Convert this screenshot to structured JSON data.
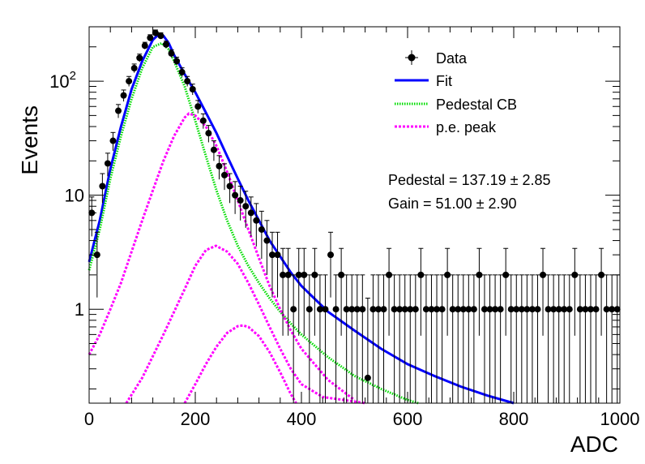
{
  "chart_data": {
    "type": "scatter",
    "title": "",
    "xlabel": "ADC",
    "ylabel": "Events",
    "xlim": [
      0,
      1000
    ],
    "ylim": [
      0.15,
      300
    ],
    "yscale": "log",
    "grid": false,
    "legend_position": "top-right",
    "x_ticks": [
      "0",
      "200",
      "400",
      "600",
      "800",
      "1000"
    ],
    "y_ticks": [
      {
        "value": 1,
        "base": "1",
        "exp": ""
      },
      {
        "value": 10,
        "base": "10",
        "exp": ""
      },
      {
        "value": 100,
        "base": "10",
        "exp": "2"
      }
    ],
    "legend": [
      {
        "label": "Data",
        "style": "marker",
        "color": "#000000"
      },
      {
        "label": "Fit",
        "style": "solid",
        "color": "#0000ff"
      },
      {
        "label": "Pedestal CB",
        "style": "dotted",
        "color": "#00dd00"
      },
      {
        "label": "p.e. peak",
        "style": "dotted",
        "color": "#ff00ff"
      }
    ],
    "annotations": [
      "Pedestal = 137.19 ± 2.85",
      "Gain = 51.00 ± 2.90"
    ],
    "data": {
      "x": [
        5,
        15,
        25,
        35,
        45,
        55,
        65,
        75,
        85,
        95,
        105,
        115,
        125,
        135,
        145,
        155,
        165,
        175,
        185,
        195,
        205,
        215,
        225,
        235,
        245,
        255,
        265,
        275,
        285,
        295,
        305,
        315,
        325,
        335,
        345,
        355,
        365,
        375,
        385,
        395,
        405,
        415,
        425,
        435,
        445,
        455,
        465,
        475,
        485,
        495,
        505,
        515,
        525,
        535,
        545,
        555,
        565,
        575,
        585,
        595,
        605,
        615,
        625,
        635,
        645,
        655,
        665,
        675,
        685,
        695,
        705,
        715,
        725,
        735,
        745,
        755,
        765,
        775,
        785,
        795,
        805,
        815,
        825,
        835,
        845,
        855,
        865,
        875,
        885,
        895,
        905,
        915,
        925,
        935,
        945,
        955,
        965,
        975,
        985,
        995
      ],
      "y": [
        7,
        3,
        12,
        19,
        30,
        55,
        75,
        100,
        130,
        160,
        205,
        240,
        265,
        250,
        210,
        175,
        150,
        120,
        100,
        85,
        60,
        45,
        35,
        25,
        18,
        15,
        12,
        10,
        9,
        8,
        7,
        6,
        5,
        4,
        3,
        3,
        2,
        2,
        1,
        2,
        2,
        1,
        2,
        1,
        1,
        3,
        1,
        2,
        1,
        1,
        1,
        1,
        0.25,
        1,
        1,
        1,
        2,
        1,
        1,
        1,
        1,
        1,
        2,
        1,
        1,
        1,
        1,
        2,
        1,
        1,
        1,
        1,
        1,
        2,
        1,
        1,
        1,
        1,
        2,
        1,
        1,
        1,
        1,
        1,
        1,
        2,
        1,
        1,
        1,
        1,
        1,
        2,
        1,
        1,
        1,
        1,
        2,
        1,
        1,
        1
      ]
    },
    "series": [
      {
        "name": "Fit",
        "color": "#0000ff",
        "x": [
          0,
          20,
          40,
          60,
          80,
          100,
          120,
          130,
          140,
          150,
          160,
          180,
          200,
          220,
          240,
          260,
          280,
          300,
          320,
          340,
          360,
          380,
          400,
          450,
          500,
          550,
          600,
          650,
          700,
          750,
          800
        ],
        "y": [
          2.6,
          6,
          17,
          40,
          85,
          150,
          230,
          255,
          250,
          215,
          170,
          115,
          80,
          53,
          35,
          22,
          14,
          9,
          6,
          4,
          2.9,
          2.1,
          1.6,
          0.95,
          0.65,
          0.45,
          0.33,
          0.26,
          0.21,
          0.175,
          0.15
        ]
      },
      {
        "name": "Pedestal CB",
        "color": "#00dd00",
        "x": [
          0,
          20,
          40,
          60,
          80,
          100,
          120,
          137,
          150,
          160,
          180,
          200,
          220,
          240,
          260,
          280,
          300,
          320,
          340,
          360,
          380,
          400,
          450,
          500,
          550,
          600,
          620
        ],
        "y": [
          2.2,
          5,
          14,
          33,
          70,
          130,
          200,
          215,
          190,
          150,
          90,
          45,
          22,
          11,
          6,
          3.6,
          2.4,
          1.7,
          1.25,
          0.95,
          0.75,
          0.6,
          0.38,
          0.26,
          0.2,
          0.16,
          0.15
        ]
      },
      {
        "name": "p.e. peak 1",
        "color": "#ff00ff",
        "x": [
          0,
          20,
          40,
          60,
          80,
          100,
          120,
          140,
          160,
          180,
          188,
          200,
          220,
          240,
          260,
          280,
          300,
          320,
          340,
          360,
          380,
          400,
          450,
          500
        ],
        "y": [
          0.4,
          0.6,
          1.0,
          1.7,
          3.2,
          6,
          11,
          20,
          33,
          48,
          52,
          50,
          40,
          27,
          16,
          9,
          5,
          2.8,
          1.6,
          1.0,
          0.65,
          0.45,
          0.24,
          0.16
        ]
      },
      {
        "name": "p.e. peak 2",
        "color": "#ff00ff",
        "x": [
          70,
          100,
          140,
          180,
          200,
          220,
          239,
          260,
          280,
          300,
          320,
          340,
          360,
          380,
          400,
          440,
          480,
          520
        ],
        "y": [
          0.15,
          0.25,
          0.6,
          1.5,
          2.4,
          3.3,
          3.6,
          3.2,
          2.5,
          1.7,
          1.1,
          0.7,
          0.45,
          0.3,
          0.22,
          0.17,
          0.16,
          0.15
        ]
      },
      {
        "name": "p.e. peak 3",
        "color": "#ff00ff",
        "x": [
          180,
          200,
          220,
          240,
          260,
          280,
          290,
          300,
          320,
          340,
          360,
          380,
          390
        ],
        "y": [
          0.15,
          0.22,
          0.33,
          0.47,
          0.62,
          0.71,
          0.72,
          0.7,
          0.58,
          0.42,
          0.28,
          0.18,
          0.15
        ]
      }
    ]
  }
}
